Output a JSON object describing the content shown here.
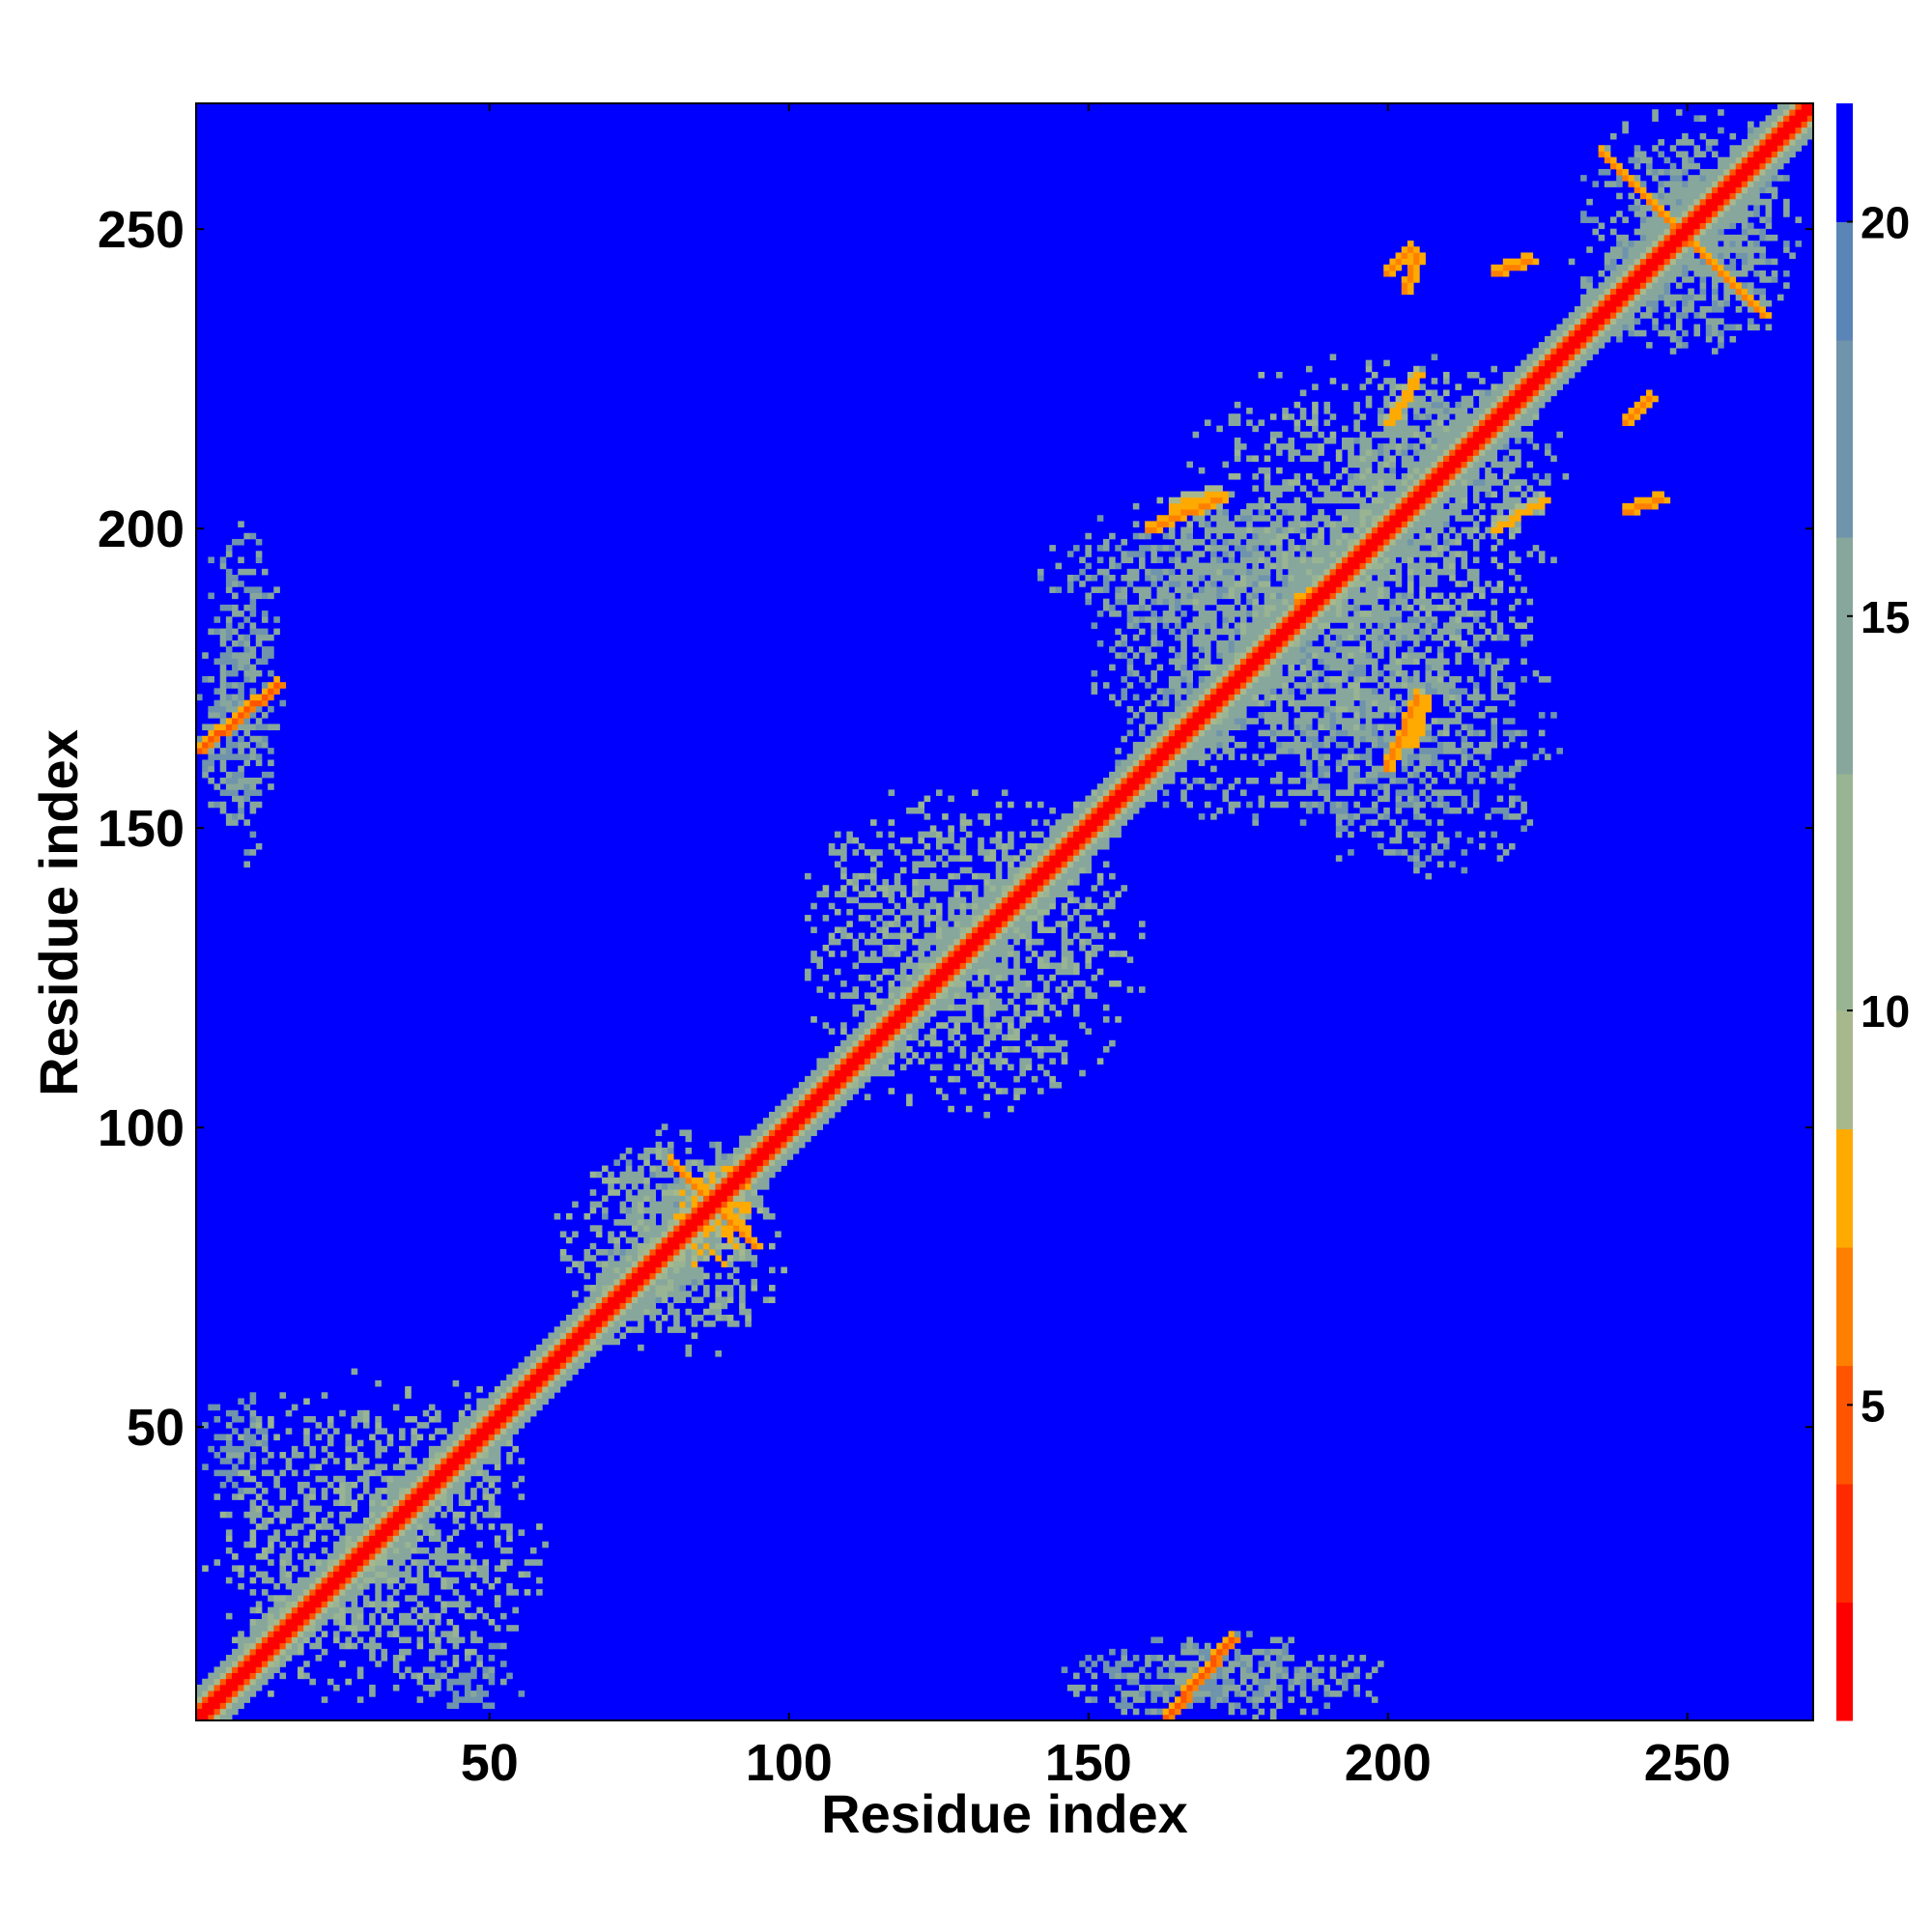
{
  "chart_data": {
    "type": "heatmap",
    "title": "",
    "xlabel": "Residue index",
    "ylabel": "Residue index",
    "xlim": [
      1,
      271
    ],
    "ylim": [
      1,
      271
    ],
    "x_ticks": [
      50,
      100,
      150,
      200,
      250
    ],
    "y_ticks": [
      50,
      100,
      150,
      200,
      250
    ],
    "colorbar": {
      "ticks": [
        5,
        10,
        15,
        20
      ],
      "range": [
        1,
        21.5
      ],
      "bands": [
        {
          "min": 1,
          "max": 2.5,
          "color": "#ff0000"
        },
        {
          "min": 2.5,
          "max": 4,
          "color": "#ff2a00"
        },
        {
          "min": 4,
          "max": 5.5,
          "color": "#ff5500"
        },
        {
          "min": 5.5,
          "max": 7,
          "color": "#ff8000"
        },
        {
          "min": 7,
          "max": 8.5,
          "color": "#ffaa00"
        },
        {
          "min": 8.5,
          "max": 10,
          "color": "#a7b98c"
        },
        {
          "min": 10,
          "max": 13,
          "color": "#98b492"
        },
        {
          "min": 13,
          "max": 16,
          "color": "#88a79c"
        },
        {
          "min": 16,
          "max": 18.5,
          "color": "#6f94ab"
        },
        {
          "min": 18.5,
          "max": 20,
          "color": "#5b84b7"
        },
        {
          "min": 20,
          "max": 21.5,
          "color": "#0000ff"
        }
      ]
    },
    "background": {
      "value": 21,
      "color": "#0000ff"
    },
    "diagonal": {
      "range": [
        1,
        271
      ],
      "profile": [
        {
          "max_offset": 1,
          "value": 2
        },
        {
          "max_offset": 2,
          "value": 5
        },
        {
          "max_offset": 3,
          "value": 9
        },
        {
          "max_offset": 5,
          "value": 14
        }
      ]
    },
    "contact_regions": [
      {
        "x": [
          1,
          60
        ],
        "y": [
          1,
          60
        ],
        "value": 12
      },
      {
        "x": [
          60,
          100
        ],
        "y": [
          60,
          100
        ],
        "value": 12
      },
      {
        "x": [
          100,
          160
        ],
        "y": [
          100,
          160
        ],
        "value": 12
      },
      {
        "x": [
          160,
          230
        ],
        "y": [
          160,
          230
        ],
        "value": 12
      },
      {
        "x": [
          230,
          271
        ],
        "y": [
          230,
          271
        ],
        "value": 13
      },
      {
        "x": [
          66,
          95
        ],
        "y": [
          66,
          100
        ],
        "value": 13
      },
      {
        "x": [
          80,
          95
        ],
        "y": [
          76,
          93
        ],
        "value": 7
      },
      {
        "x": [
          150,
          205
        ],
        "y": [
          150,
          205
        ],
        "value": 13
      },
      {
        "x": [
          190,
          230
        ],
        "y": [
          195,
          230
        ],
        "value": 13
      },
      {
        "x": [
          140,
          200
        ],
        "y": [
          180,
          205
        ],
        "value": 14
      },
      {
        "x": [
          180,
          230
        ],
        "y": [
          140,
          190
        ],
        "value": 14
      },
      {
        "x": [
          1,
          15
        ],
        "y": [
          143,
          205
        ],
        "value": 14
      },
      {
        "x": [
          143,
          205
        ],
        "y": [
          1,
          15
        ],
        "value": 14
      },
      {
        "x": [
          1,
          14
        ],
        "y": [
          38,
          56
        ],
        "value": 15
      },
      {
        "x": [
          38,
          56
        ],
        "y": [
          1,
          14
        ],
        "value": 15
      },
      {
        "x": [
          148,
          185
        ],
        "y": [
          1,
          12
        ],
        "value": 14
      },
      {
        "x": [
          1,
          12
        ],
        "y": [
          148,
          185
        ],
        "value": 14
      },
      {
        "x": [
          236,
          268
        ],
        "y": [
          228,
          264
        ],
        "value": 14
      }
    ],
    "contact_lines": [
      {
        "from": [
          1,
          163
        ],
        "to": [
          14,
          174
        ],
        "value": 5
      },
      {
        "from": [
          163,
          1
        ],
        "to": [
          174,
          14
        ],
        "value": 5
      },
      {
        "from": [
          80,
          94
        ],
        "to": [
          94,
          80
        ],
        "value": 6
      },
      {
        "from": [
          236,
          263
        ],
        "to": [
          263,
          236
        ],
        "value": 6
      },
      {
        "from": [
          164,
          204
        ],
        "to": [
          172,
          206
        ],
        "value": 7
      },
      {
        "from": [
          204,
          164
        ],
        "to": [
          206,
          172
        ],
        "value": 7
      },
      {
        "from": [
          160,
          200
        ],
        "to": [
          172,
          205
        ],
        "value": 6
      },
      {
        "from": [
          200,
          160
        ],
        "to": [
          205,
          172
        ],
        "value": 6
      },
      {
        "from": [
          218,
          200
        ],
        "to": [
          226,
          205
        ],
        "value": 7
      },
      {
        "from": [
          200,
          218
        ],
        "to": [
          205,
          226
        ],
        "value": 7
      },
      {
        "from": [
          240,
          203
        ],
        "to": [
          246,
          205
        ],
        "value": 6
      },
      {
        "from": [
          203,
          240
        ],
        "to": [
          205,
          246
        ],
        "value": 6
      },
      {
        "from": [
          185,
          188
        ],
        "to": [
          190,
          190
        ],
        "value": 6
      },
      {
        "from": [
          240,
          218
        ],
        "to": [
          244,
          222
        ],
        "value": 6
      },
      {
        "from": [
          200,
          243
        ],
        "to": [
          204,
          247
        ],
        "value": 6
      },
      {
        "from": [
          218,
          243
        ],
        "to": [
          224,
          245
        ],
        "value": 6
      }
    ]
  }
}
